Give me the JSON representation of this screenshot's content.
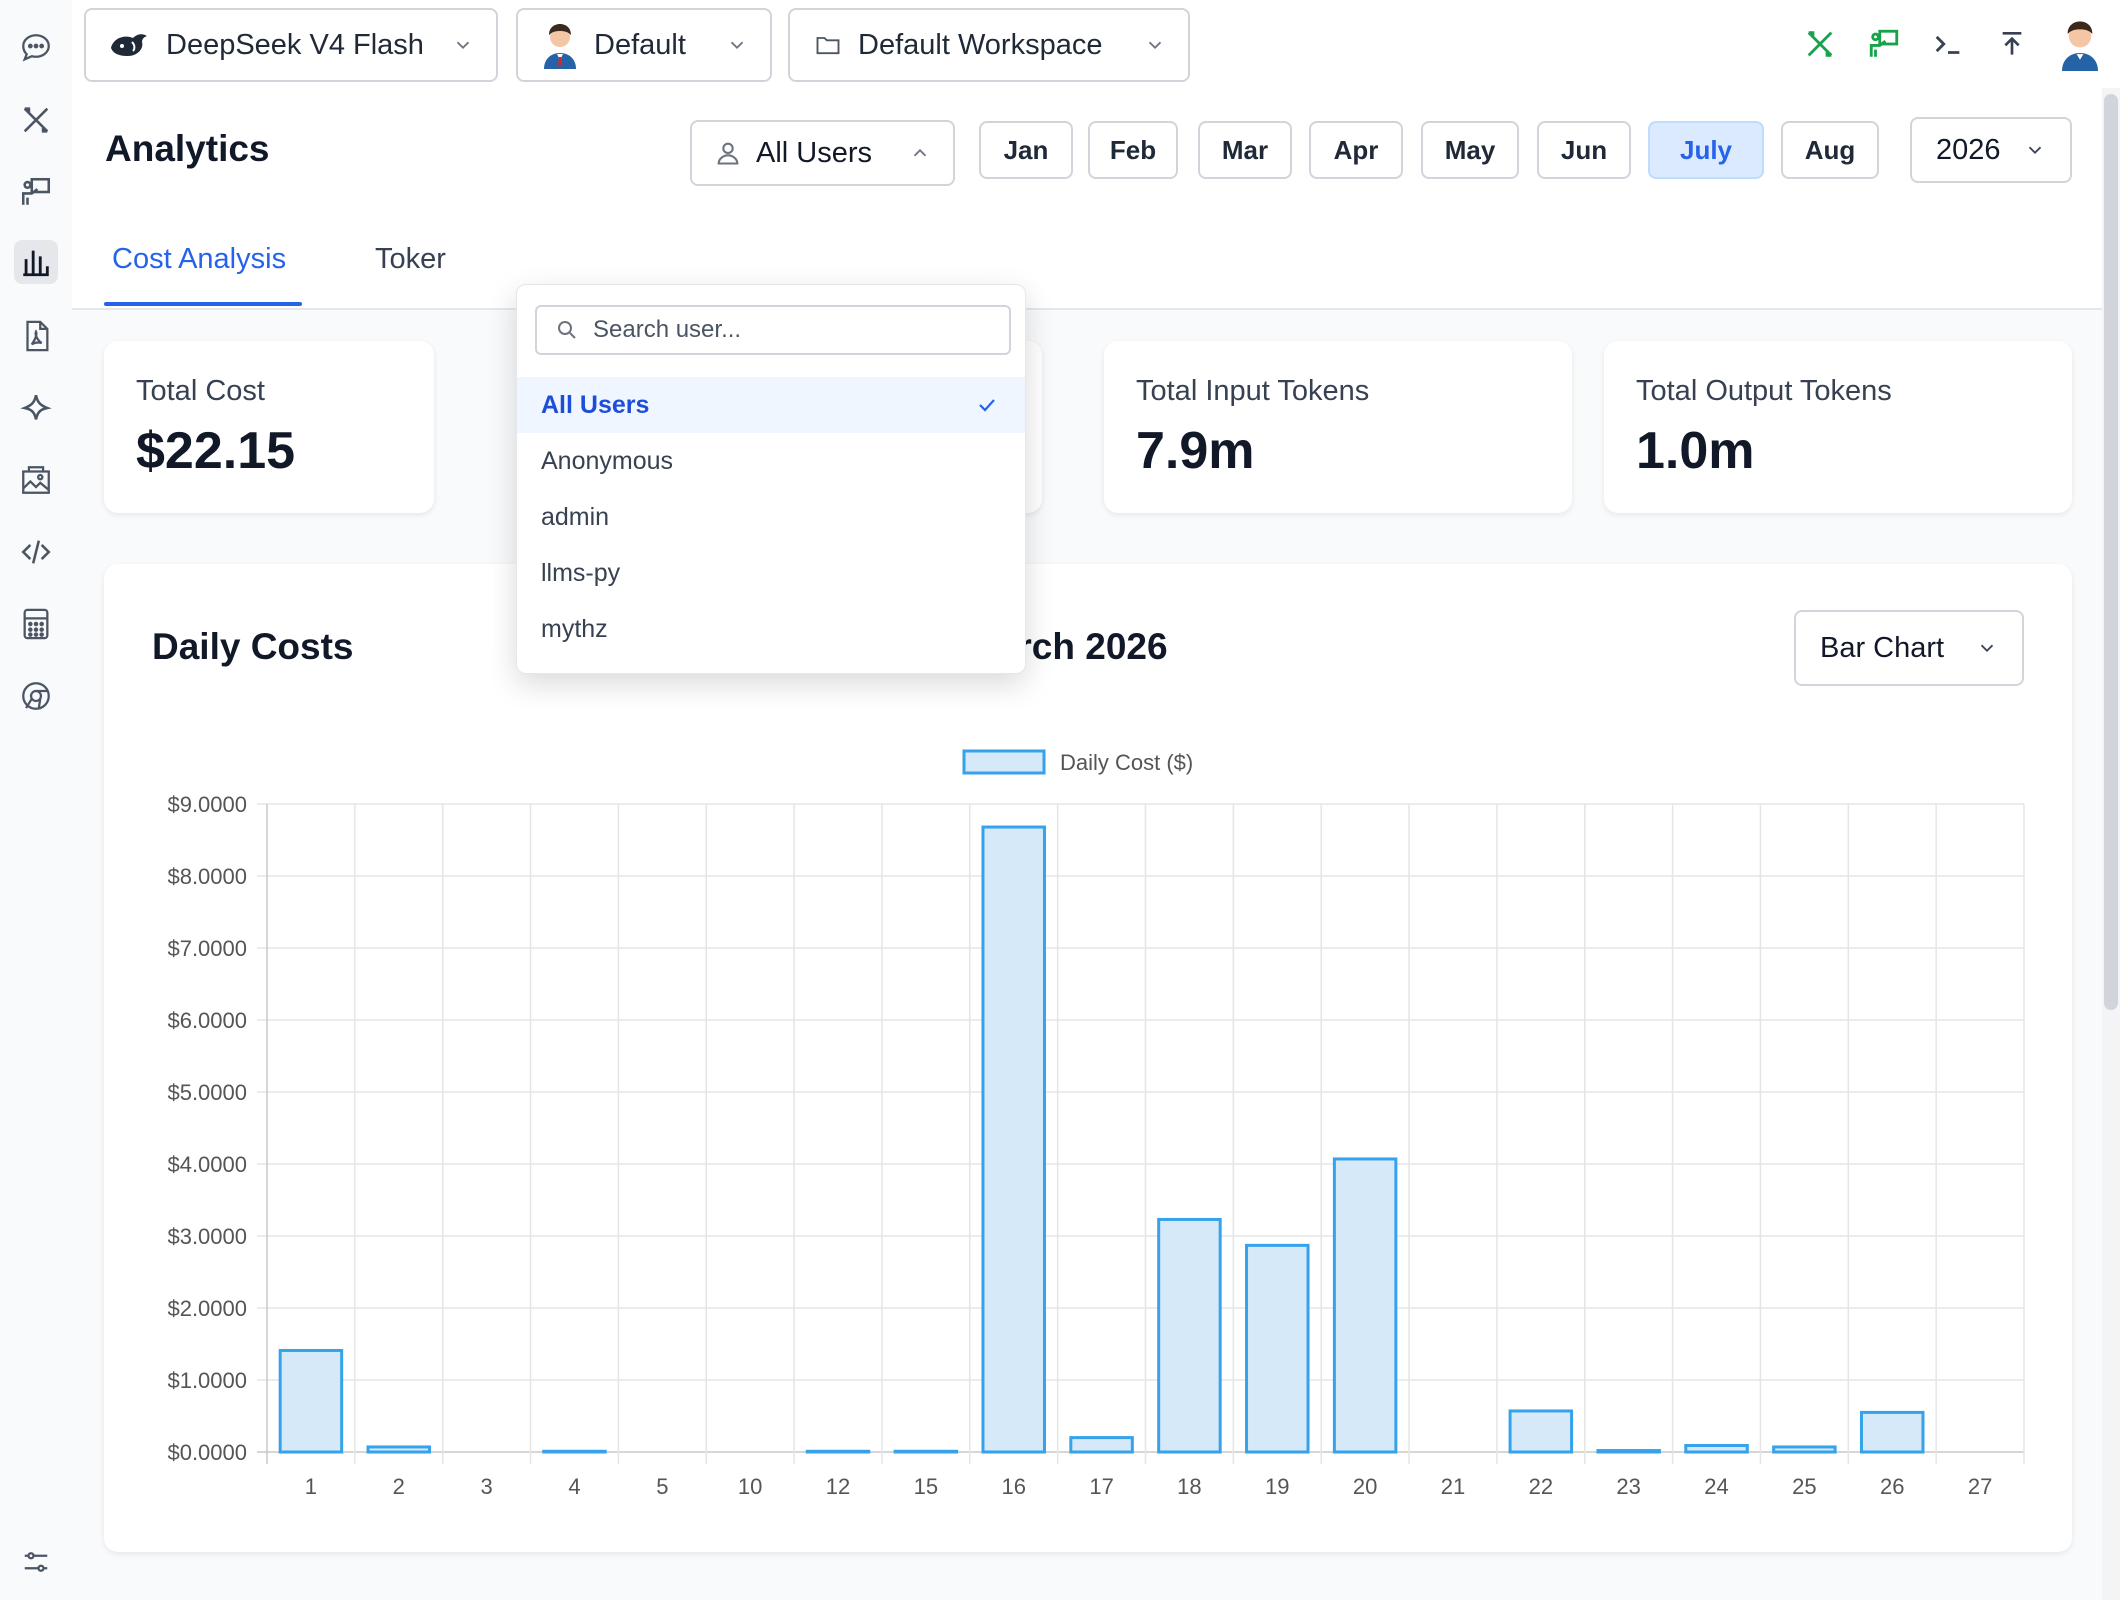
{
  "topbar": {
    "model": "DeepSeek V4 Flash",
    "persona": "Default",
    "workspace": "Default Workspace"
  },
  "page": {
    "title": "Analytics"
  },
  "user_filter": {
    "selected": "All Users",
    "search_placeholder": "Search user...",
    "options": [
      "All Users",
      "Anonymous",
      "admin",
      "llms-py",
      "mythz"
    ]
  },
  "months": [
    "Jan",
    "Feb",
    "Mar",
    "Apr",
    "May",
    "Jun",
    "July",
    "Aug"
  ],
  "selected_month": "July",
  "year": "2026",
  "tabs": [
    "Cost Analysis",
    "Toker"
  ],
  "cards": [
    {
      "label": "Total Cost",
      "value": "$22.15"
    },
    {
      "label": "Total Input Tokens",
      "value": "7.9m"
    },
    {
      "label": "Total Output Tokens",
      "value": "1.0m"
    }
  ],
  "chart_panel": {
    "title": "Daily Costs",
    "month_label": "March 2026",
    "chart_type": "Bar Chart"
  },
  "colors": {
    "accent": "#2563eb",
    "bar_fill": "#d6e9f8",
    "bar_stroke": "#36a2eb",
    "active_green": "#16a34a"
  },
  "chart_data": {
    "type": "bar",
    "title": "",
    "legend": "Daily Cost ($)",
    "legend_position": "top-center",
    "grid": true,
    "categories": [
      "1",
      "2",
      "3",
      "4",
      "5",
      "10",
      "12",
      "15",
      "16",
      "17",
      "18",
      "19",
      "20",
      "21",
      "22",
      "23",
      "24",
      "25",
      "26",
      "27"
    ],
    "values": [
      1.41,
      0.07,
      0.0,
      0.01,
      0.0,
      0.0,
      0.01,
      0.01,
      8.68,
      0.2,
      3.23,
      2.87,
      4.07,
      0.0,
      0.57,
      0.02,
      0.09,
      0.07,
      0.55,
      0.0
    ],
    "ylim": [
      0,
      9
    ],
    "yticks": [
      "$0.0000",
      "$1.0000",
      "$2.0000",
      "$3.0000",
      "$4.0000",
      "$5.0000",
      "$6.0000",
      "$7.0000",
      "$8.0000",
      "$9.0000"
    ]
  }
}
